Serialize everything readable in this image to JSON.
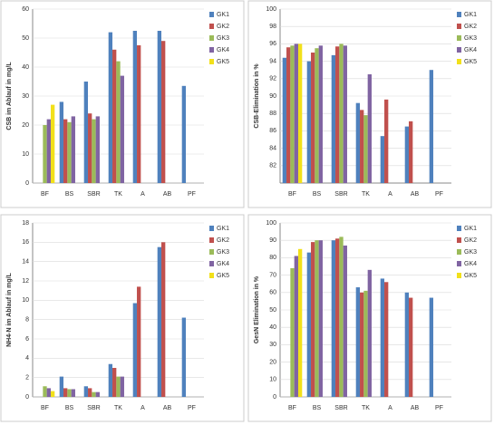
{
  "chart_data": [
    {
      "type": "bar",
      "ylabel": "CSB im Ablauf in mg/L",
      "categories": [
        "BF",
        "BS",
        "SBR",
        "TK",
        "A",
        "AB",
        "PF"
      ],
      "ylim": [
        0,
        60
      ],
      "yticks": [
        0,
        10,
        20,
        30,
        40,
        50,
        60
      ],
      "series": [
        {
          "name": "GK1",
          "color": "#4f81bd",
          "values": [
            null,
            28,
            35,
            52,
            52.5,
            52.5,
            33.5
          ]
        },
        {
          "name": "GK2",
          "color": "#c0504d",
          "values": [
            null,
            22,
            24,
            46,
            47.5,
            49,
            null
          ]
        },
        {
          "name": "GK3",
          "color": "#9bbb59",
          "values": [
            20,
            21,
            22,
            42,
            null,
            null,
            null
          ]
        },
        {
          "name": "GK4",
          "color": "#8064a2",
          "values": [
            22,
            23,
            23,
            37,
            null,
            null,
            null
          ]
        },
        {
          "name": "GK5",
          "color": "#f2e01a",
          "values": [
            27,
            null,
            null,
            null,
            null,
            null,
            null
          ]
        }
      ]
    },
    {
      "type": "bar",
      "ylabel": "CSB-Elimination in %",
      "categories": [
        "BF",
        "BS",
        "SBR",
        "TK",
        "A",
        "AB",
        "PF"
      ],
      "ylim": [
        80,
        100
      ],
      "yticks": [
        82,
        84,
        86,
        88,
        90,
        92,
        94,
        96,
        98,
        100
      ],
      "series": [
        {
          "name": "GK1",
          "color": "#4f81bd",
          "values": [
            94.4,
            94,
            94.7,
            89.2,
            85.4,
            86.5,
            93
          ]
        },
        {
          "name": "GK2",
          "color": "#c0504d",
          "values": [
            95.6,
            95,
            95.7,
            88.4,
            89.6,
            87.1,
            null
          ]
        },
        {
          "name": "GK3",
          "color": "#9bbb59",
          "values": [
            95.8,
            95.5,
            96,
            87.8,
            null,
            null,
            null
          ]
        },
        {
          "name": "GK4",
          "color": "#8064a2",
          "values": [
            96,
            95.8,
            95.8,
            92.5,
            null,
            null,
            null
          ]
        },
        {
          "name": "GK5",
          "color": "#f2e01a",
          "values": [
            96,
            null,
            null,
            null,
            null,
            null,
            null
          ]
        }
      ]
    },
    {
      "type": "bar",
      "ylabel": "NH4-N im Ablauf in mg/L",
      "categories": [
        "BF",
        "BS",
        "SBR",
        "TK",
        "A",
        "AB",
        "PF"
      ],
      "ylim": [
        0,
        18
      ],
      "yticks": [
        0,
        2,
        4,
        6,
        8,
        10,
        12,
        14,
        16,
        18
      ],
      "series": [
        {
          "name": "GK1",
          "color": "#4f81bd",
          "values": [
            null,
            2.1,
            1.1,
            3.4,
            9.7,
            15.5,
            8.2
          ]
        },
        {
          "name": "GK2",
          "color": "#c0504d",
          "values": [
            null,
            0.9,
            0.9,
            3.0,
            11.4,
            16,
            null
          ]
        },
        {
          "name": "GK3",
          "color": "#9bbb59",
          "values": [
            1.1,
            0.8,
            0.5,
            2.1,
            null,
            null,
            null
          ]
        },
        {
          "name": "GK4",
          "color": "#8064a2",
          "values": [
            0.9,
            0.8,
            0.5,
            2.1,
            null,
            null,
            null
          ]
        },
        {
          "name": "GK5",
          "color": "#f2e01a",
          "values": [
            0.6,
            null,
            null,
            null,
            null,
            null,
            null
          ]
        }
      ]
    },
    {
      "type": "bar",
      "ylabel": "GesN Elimination in %",
      "categories": [
        "BF",
        "BS",
        "SBR",
        "TK",
        "A",
        "AB",
        "PF"
      ],
      "ylim": [
        0,
        100
      ],
      "yticks": [
        0,
        10,
        20,
        30,
        40,
        50,
        60,
        70,
        80,
        90,
        100
      ],
      "series": [
        {
          "name": "GK1",
          "color": "#4f81bd",
          "values": [
            null,
            83,
            90,
            63,
            68,
            60,
            57
          ]
        },
        {
          "name": "GK2",
          "color": "#c0504d",
          "values": [
            null,
            89,
            91,
            60,
            66,
            57,
            null
          ]
        },
        {
          "name": "GK3",
          "color": "#9bbb59",
          "values": [
            74,
            90,
            92,
            61,
            null,
            null,
            null
          ]
        },
        {
          "name": "GK4",
          "color": "#8064a2",
          "values": [
            81,
            90,
            87,
            73,
            null,
            null,
            null
          ]
        },
        {
          "name": "GK5",
          "color": "#f2e01a",
          "values": [
            85,
            null,
            null,
            null,
            null,
            null,
            null
          ]
        }
      ]
    }
  ]
}
